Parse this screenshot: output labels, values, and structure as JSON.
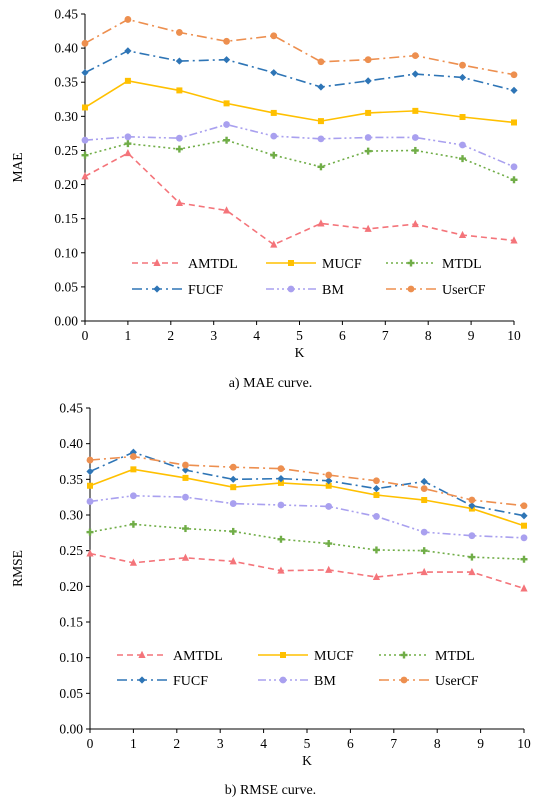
{
  "figures": {
    "mae": {
      "caption": "a) MAE curve."
    },
    "rmse": {
      "caption": "b) RMSE curve."
    }
  },
  "chart_data": [
    {
      "type": "line",
      "title": "",
      "xlabel": "K",
      "ylabel": "MAE",
      "x_ticks": [
        0,
        1,
        2,
        3,
        4,
        5,
        6,
        7,
        8,
        9,
        10
      ],
      "y_ticks": [
        "0.00",
        "0.05",
        "0.10",
        "0.15",
        "0.20",
        "0.25",
        "0.30",
        "0.35",
        "0.40",
        "0.45"
      ],
      "xlim": [
        0,
        10
      ],
      "ylim": [
        0,
        0.45
      ],
      "grid": false,
      "legend_position": "inside-bottom",
      "series": [
        {
          "name": "AMTDL",
          "color": "#f4747a",
          "dash": "6,4",
          "marker": "triangle",
          "x": [
            0,
            1,
            2.2,
            3.3,
            4.4,
            5.5,
            6.6,
            7.7,
            8.8,
            10
          ],
          "y": [
            0.212,
            0.246,
            0.173,
            0.162,
            0.112,
            0.143,
            0.135,
            0.142,
            0.126,
            0.118
          ]
        },
        {
          "name": "MUCF",
          "color": "#ffc000",
          "dash": "",
          "marker": "square",
          "x": [
            0,
            1,
            2.2,
            3.3,
            4.4,
            5.5,
            6.6,
            7.7,
            8.8,
            10
          ],
          "y": [
            0.313,
            0.352,
            0.338,
            0.319,
            0.305,
            0.293,
            0.305,
            0.308,
            0.299,
            0.291
          ]
        },
        {
          "name": "MTDL",
          "color": "#70ad47",
          "dash": "2,3",
          "marker": "plus",
          "x": [
            0,
            1,
            2.2,
            3.3,
            4.4,
            5.5,
            6.6,
            7.7,
            8.8,
            10
          ],
          "y": [
            0.243,
            0.26,
            0.252,
            0.265,
            0.243,
            0.226,
            0.249,
            0.25,
            0.238,
            0.207
          ]
        },
        {
          "name": "FUCF",
          "color": "#2e75b6",
          "dash": "10,4,2,4",
          "marker": "diamond",
          "x": [
            0,
            1,
            2.2,
            3.3,
            4.4,
            5.5,
            6.6,
            7.7,
            8.8,
            10
          ],
          "y": [
            0.364,
            0.396,
            0.381,
            0.383,
            0.364,
            0.343,
            0.352,
            0.362,
            0.357,
            0.338
          ]
        },
        {
          "name": "BM",
          "color": "#a9a0ef",
          "dash": "8,3,2,3,2,3",
          "marker": "circle",
          "x": [
            0,
            1,
            2.2,
            3.3,
            4.4,
            5.5,
            6.6,
            7.7,
            8.8,
            10
          ],
          "y": [
            0.265,
            0.27,
            0.268,
            0.288,
            0.271,
            0.267,
            0.269,
            0.269,
            0.258,
            0.226
          ]
        },
        {
          "name": "UserCF",
          "color": "#ed8f4f",
          "dash": "10,4,2,4",
          "marker": "circle",
          "x": [
            0,
            1,
            2.2,
            3.3,
            4.4,
            5.5,
            6.6,
            7.7,
            8.8,
            10
          ],
          "y": [
            0.407,
            0.442,
            0.423,
            0.41,
            0.418,
            0.38,
            0.383,
            0.389,
            0.375,
            0.361
          ]
        }
      ]
    },
    {
      "type": "line",
      "title": "",
      "xlabel": "K",
      "ylabel": "RMSE",
      "x_ticks": [
        0,
        1,
        2,
        3,
        4,
        5,
        6,
        7,
        8,
        9,
        10
      ],
      "y_ticks": [
        "0.00",
        "0.05",
        "0.10",
        "0.15",
        "0.20",
        "0.25",
        "0.30",
        "0.35",
        "0.40",
        "0.45"
      ],
      "xlim": [
        0,
        10
      ],
      "ylim": [
        0,
        0.45
      ],
      "grid": false,
      "legend_position": "inside-bottom",
      "series": [
        {
          "name": "AMTDL",
          "color": "#f4747a",
          "dash": "6,4",
          "marker": "triangle",
          "x": [
            0,
            1,
            2.2,
            3.3,
            4.4,
            5.5,
            6.6,
            7.7,
            8.8,
            10
          ],
          "y": [
            0.246,
            0.233,
            0.24,
            0.235,
            0.222,
            0.223,
            0.213,
            0.22,
            0.22,
            0.197
          ]
        },
        {
          "name": "MUCF",
          "color": "#ffc000",
          "dash": "",
          "marker": "square",
          "x": [
            0,
            1,
            2.2,
            3.3,
            4.4,
            5.5,
            6.6,
            7.7,
            8.8,
            10
          ],
          "y": [
            0.341,
            0.364,
            0.352,
            0.339,
            0.345,
            0.341,
            0.328,
            0.321,
            0.309,
            0.285
          ]
        },
        {
          "name": "MTDL",
          "color": "#70ad47",
          "dash": "2,3",
          "marker": "plus",
          "x": [
            0,
            1,
            2.2,
            3.3,
            4.4,
            5.5,
            6.6,
            7.7,
            8.8,
            10
          ],
          "y": [
            0.276,
            0.287,
            0.281,
            0.277,
            0.266,
            0.26,
            0.251,
            0.25,
            0.241,
            0.238
          ]
        },
        {
          "name": "FUCF",
          "color": "#2e75b6",
          "dash": "10,4,2,4",
          "marker": "diamond",
          "x": [
            0,
            1,
            2.2,
            3.3,
            4.4,
            5.5,
            6.6,
            7.7,
            8.8,
            10
          ],
          "y": [
            0.361,
            0.388,
            0.363,
            0.35,
            0.351,
            0.348,
            0.337,
            0.347,
            0.313,
            0.299
          ]
        },
        {
          "name": "BM",
          "color": "#a9a0ef",
          "dash": "8,3,2,3,2,3",
          "marker": "circle",
          "x": [
            0,
            1,
            2.2,
            3.3,
            4.4,
            5.5,
            6.6,
            7.7,
            8.8,
            10
          ],
          "y": [
            0.319,
            0.327,
            0.325,
            0.316,
            0.314,
            0.312,
            0.298,
            0.276,
            0.271,
            0.268
          ]
        },
        {
          "name": "UserCF",
          "color": "#ed8f4f",
          "dash": "10,4,2,4",
          "marker": "circle",
          "x": [
            0,
            1,
            2.2,
            3.3,
            4.4,
            5.5,
            6.6,
            7.7,
            8.8,
            10
          ],
          "y": [
            0.377,
            0.382,
            0.37,
            0.367,
            0.365,
            0.356,
            0.348,
            0.337,
            0.321,
            0.313
          ]
        }
      ]
    }
  ]
}
